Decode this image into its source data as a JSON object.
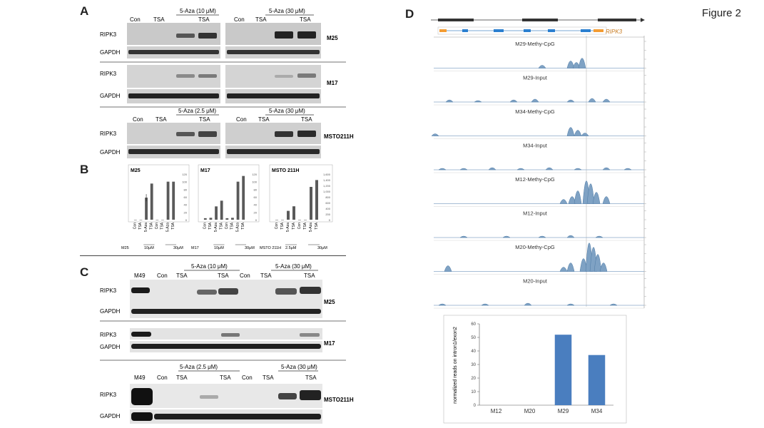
{
  "figure_title": "Figure 2",
  "panels": {
    "A": {
      "letter": "A",
      "gels": [
        {
          "cell_line": "M25",
          "left": {
            "treatment_header": "5-Aza (10 μM)",
            "lanes": [
              "Con",
              "TSA",
              "",
              "TSA"
            ]
          },
          "right": {
            "treatment_header": "5-Aza (30 μM)",
            "lanes": [
              "Con",
              "TSA",
              "",
              "TSA"
            ]
          },
          "rows": [
            "RIPK3",
            "GAPDH"
          ]
        },
        {
          "cell_line": "M17",
          "rows": [
            "RIPK3",
            "GAPDH"
          ]
        },
        {
          "cell_line": "MSTO211H",
          "left": {
            "treatment_header": "5-Aza (2.5 μM)",
            "lanes": [
              "Con",
              "TSA",
              "",
              "TSA"
            ]
          },
          "right": {
            "treatment_header": "5-Aza (30 μM)",
            "lanes": [
              "Con",
              "TSA",
              "",
              "TSA"
            ]
          },
          "rows": [
            "RIPK3",
            "GAPDH"
          ]
        }
      ]
    },
    "B": {
      "letter": "B",
      "charts": [
        {
          "title": "M25",
          "ticks": [
            "120",
            "100",
            "80",
            "60",
            "40",
            "20",
            "0"
          ]
        },
        {
          "title": "M17",
          "ticks": [
            "120",
            "100",
            "80",
            "60",
            "40",
            "20",
            "0"
          ]
        },
        {
          "title": "MSTO 211H",
          "ticks": [
            "1,600",
            "1,400",
            "1,200",
            "1,000",
            "800",
            "600",
            "400",
            "200",
            "0"
          ]
        }
      ],
      "x_labels": [
        "Con",
        "TSA",
        "5-Aza",
        "TSA",
        "Con",
        "TSA",
        "5-Aza",
        "TSA"
      ],
      "groups": [
        {
          "cell": "M25",
          "doseA": "10μM",
          "doseB": "30μM"
        },
        {
          "cell": "M17",
          "doseA": "10μM",
          "doseB": "30μM"
        },
        {
          "cell": "MSTO 211H",
          "doseA": "2.5μM",
          "doseB": "30μM"
        }
      ]
    },
    "C": {
      "letter": "C",
      "blot1": {
        "lanes": [
          "M49",
          "Con",
          "TSA",
          "",
          "TSA",
          "Con",
          "TSA",
          "",
          "TSA"
        ],
        "header_left": "5-Aza (10 μM)",
        "header_right": "5-Aza (30 μM)",
        "labels": {
          "M25": "M25",
          "M17": "M17"
        },
        "rows": [
          "RIPK3",
          "GAPDH"
        ]
      },
      "blot2": {
        "lanes": [
          "M49",
          "Con",
          "TSA",
          "",
          "TSA",
          "Con",
          "TSA",
          "",
          "TSA"
        ],
        "header_left": "5-Aza (2.5 μM)",
        "header_right": "5-Aza (30 μM)",
        "label": "MSTO211H",
        "rows": [
          "RIPK3",
          "GAPDH"
        ]
      }
    },
    "D": {
      "letter": "D",
      "gene_label": "RIPK3",
      "tracks": [
        "M29-Methy-CpG",
        "M29-Input",
        "M34-Methy-CpG",
        "M34-Input",
        "M12-Methy-CpG",
        "M12-Input",
        "M20-Methy-CpG",
        "M20-Input"
      ]
    }
  },
  "chart_data": [
    {
      "type": "bar",
      "title": "M25",
      "categories": [
        "Con",
        "TSA",
        "5-Aza 10μM",
        "5-Aza 10μM + TSA",
        "Con",
        "TSA",
        "5-Aza 30μM",
        "5-Aza 30μM + TSA"
      ],
      "values": [
        0,
        0,
        58,
        95,
        0,
        0,
        100,
        100
      ],
      "ylim": [
        0,
        120
      ]
    },
    {
      "type": "bar",
      "title": "M17",
      "categories": [
        "Con",
        "TSA",
        "5-Aza 10μM",
        "5-Aza 10μM + TSA",
        "Con",
        "TSA",
        "5-Aza 30μM",
        "5-Aza 30μM + TSA"
      ],
      "values": [
        4,
        5,
        35,
        50,
        4,
        5,
        100,
        115
      ],
      "ylim": [
        0,
        120
      ]
    },
    {
      "type": "bar",
      "title": "MSTO 211H",
      "categories": [
        "Con",
        "TSA",
        "5-Aza 2.5μM",
        "5-Aza 2.5μM + TSA",
        "Con",
        "TSA",
        "5-Aza 30μM",
        "5-Aza 30μM + TSA"
      ],
      "values": [
        0,
        0,
        310,
        470,
        0,
        0,
        1150,
        1390
      ],
      "ylim": [
        0,
        1600
      ]
    },
    {
      "type": "bar",
      "title": "",
      "ylabel": "normalized reads on intron1/exon2",
      "categories": [
        "M12",
        "M20",
        "M29",
        "M34"
      ],
      "values": [
        0,
        0,
        52,
        37
      ],
      "ylim": [
        0,
        60
      ],
      "ticks": [
        "0",
        "10",
        "20",
        "30",
        "40",
        "50",
        "60"
      ],
      "color": "#4a7ebf"
    }
  ]
}
